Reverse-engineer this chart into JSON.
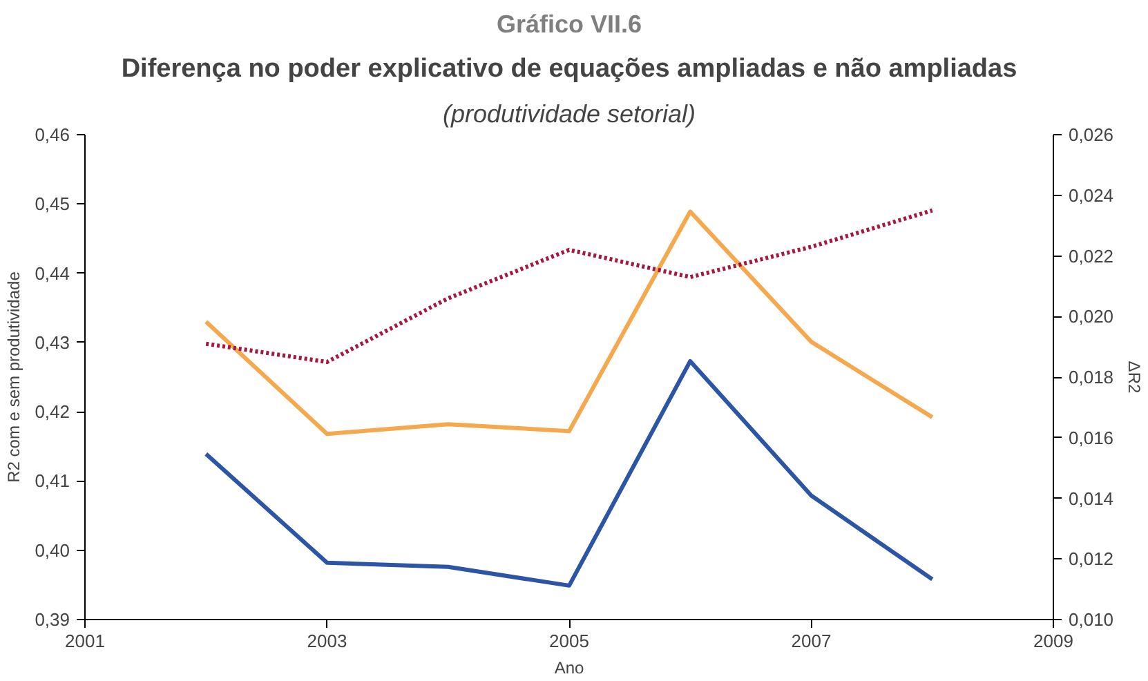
{
  "chart_data": {
    "type": "line",
    "annotations": [
      "Gráfico VII.6"
    ],
    "title": "Diferença no poder explicativo de equações ampliadas e não ampliadas",
    "subtitle": "(produtividade setorial)",
    "xlabel": "Ano",
    "ylabel": "R2 com e sem produtividade",
    "y2label": "ΔR2",
    "x": [
      2002,
      2003,
      2004,
      2005,
      2006,
      2007,
      2008
    ],
    "xlim": [
      2001,
      2009
    ],
    "xticks": [
      2001,
      2003,
      2005,
      2007,
      2009
    ],
    "ylim": [
      0.39,
      0.46
    ],
    "yticks": [
      {
        "value": 0.39,
        "label": "0,39"
      },
      {
        "value": 0.4,
        "label": "0,40"
      },
      {
        "value": 0.41,
        "label": "0,41"
      },
      {
        "value": 0.42,
        "label": "0,42"
      },
      {
        "value": 0.43,
        "label": "0,43"
      },
      {
        "value": 0.44,
        "label": "0,44"
      },
      {
        "value": 0.45,
        "label": "0,45"
      },
      {
        "value": 0.46,
        "label": "0,46"
      }
    ],
    "y2lim": [
      0.01,
      0.026
    ],
    "y2ticks": [
      {
        "value": 0.01,
        "label": "0,010"
      },
      {
        "value": 0.012,
        "label": "0,012"
      },
      {
        "value": 0.014,
        "label": "0,014"
      },
      {
        "value": 0.016,
        "label": "0,016"
      },
      {
        "value": 0.018,
        "label": "0,018"
      },
      {
        "value": 0.02,
        "label": "0,020"
      },
      {
        "value": 0.022,
        "label": "0,022"
      },
      {
        "value": 0.024,
        "label": "0,024"
      },
      {
        "value": 0.026,
        "label": "0,026"
      }
    ],
    "grid": false,
    "series": [
      {
        "color": "#f5a94e",
        "values": [
          0.433,
          0.4168,
          0.4182,
          0.4172,
          0.4489,
          0.4301,
          0.4192
        ]
      },
      {
        "color": "#2d55a5",
        "values": [
          0.4139,
          0.3982,
          0.3976,
          0.3949,
          0.4273,
          0.4079,
          0.3958
        ]
      },
      {
        "color": "#a3193f",
        "axis": "y2",
        "line_style": "dotted",
        "values": [
          0.0191,
          0.0185,
          0.0206,
          0.0222,
          0.0213,
          0.0223,
          0.0235
        ]
      }
    ]
  }
}
